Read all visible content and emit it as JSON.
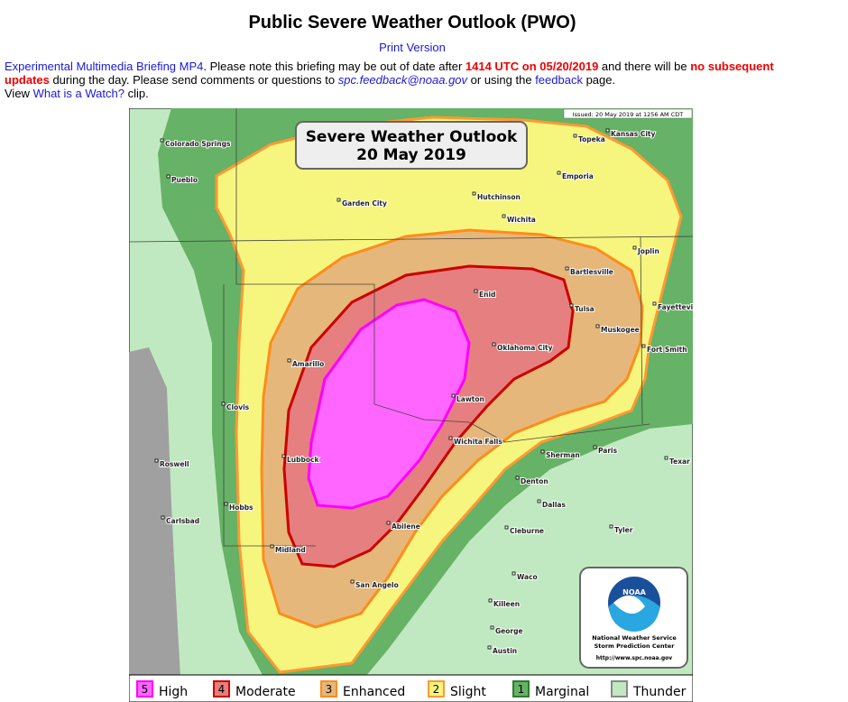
{
  "header": {
    "title": "Public Severe Weather Outlook (PWO)",
    "print_link": "Print Version"
  },
  "notice": {
    "briefing_link": "Experimental Multimedia Briefing MP4",
    "text_1": ". Please note this briefing may be out of date after ",
    "time": "1414 UTC on 05/20/2019",
    "text_2": " and there will be ",
    "no_updates": "no subsequent updates",
    "text_3": " during the day. Please send comments or questions to ",
    "email": "spc.feedback@noaa.gov",
    "text_4": " or using the ",
    "feedback_link": "feedback",
    "text_5": " page.",
    "view_text": "View ",
    "watch_link": "What is a Watch?",
    "text_6": " clip."
  },
  "map": {
    "title": "Severe Weather Outlook",
    "date": "20 May 2019",
    "issued": "Issued: 20 May 2019 at 1256 AM CDT",
    "cities": [
      "Colorado Springs",
      "Pueblo",
      "Garden City",
      "Hutchinson",
      "Wichita",
      "Topeka",
      "Kansas City",
      "Emporia",
      "Joplin",
      "Bartlesville",
      "Enid",
      "Tulsa",
      "Fayetteville",
      "Muskogee",
      "Fort Smith",
      "Oklahoma City",
      "Amarillo",
      "Lawton",
      "Clovis",
      "Wichita Falls",
      "Sherman",
      "Paris",
      "Texar",
      "Roswell",
      "Lubbock",
      "Denton",
      "Dallas",
      "Tyler",
      "Hobbs",
      "Carlsbad",
      "Cleburne",
      "Abilene",
      "Midland",
      "Waco",
      "San Angelo",
      "Killeen",
      "George",
      "Austin"
    ],
    "logo": {
      "text": "NOAA",
      "line1": "National Weather Service",
      "line2": "Storm Prediction Center",
      "url": "http://www.spc.noaa.gov"
    },
    "legend": [
      {
        "num": "5",
        "label": "High"
      },
      {
        "num": "4",
        "label": "Moderate"
      },
      {
        "num": "3",
        "label": "Enhanced"
      },
      {
        "num": "2",
        "label": "Slight"
      },
      {
        "num": "1",
        "label": "Marginal"
      },
      {
        "label": "Thunder"
      }
    ]
  }
}
